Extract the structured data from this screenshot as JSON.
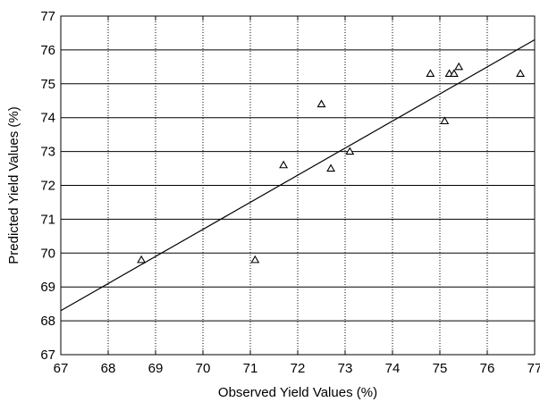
{
  "chart_data": {
    "type": "scatter",
    "xlabel": "Observed Yield Values (%)",
    "ylabel": "Predicted Yield Values (%)",
    "xlim": [
      67,
      77
    ],
    "ylim": [
      67,
      77
    ],
    "xticks": [
      "67",
      "68",
      "69",
      "70",
      "71",
      "72",
      "73",
      "74",
      "75",
      "76",
      "77"
    ],
    "yticks": [
      "67",
      "68",
      "69",
      "70",
      "71",
      "72",
      "73",
      "74",
      "75",
      "76",
      "77"
    ],
    "grid": {
      "x": "dotted",
      "y": "solid"
    },
    "marker": "open-triangle",
    "series": [
      {
        "points": [
          {
            "x": 68.7,
            "y": 69.8
          },
          {
            "x": 71.1,
            "y": 69.8
          },
          {
            "x": 71.7,
            "y": 72.6
          },
          {
            "x": 72.5,
            "y": 74.4
          },
          {
            "x": 72.7,
            "y": 72.5
          },
          {
            "x": 73.1,
            "y": 73.0
          },
          {
            "x": 74.8,
            "y": 75.3
          },
          {
            "x": 75.1,
            "y": 73.9
          },
          {
            "x": 75.2,
            "y": 75.3
          },
          {
            "x": 75.3,
            "y": 75.3
          },
          {
            "x": 75.4,
            "y": 75.5
          },
          {
            "x": 76.7,
            "y": 75.3
          }
        ]
      }
    ],
    "fit_line": {
      "x": [
        67,
        77
      ],
      "y": [
        68.3,
        76.3
      ]
    }
  },
  "colors": {
    "line": "#000000",
    "background": "#ffffff",
    "grid": "#000000"
  }
}
